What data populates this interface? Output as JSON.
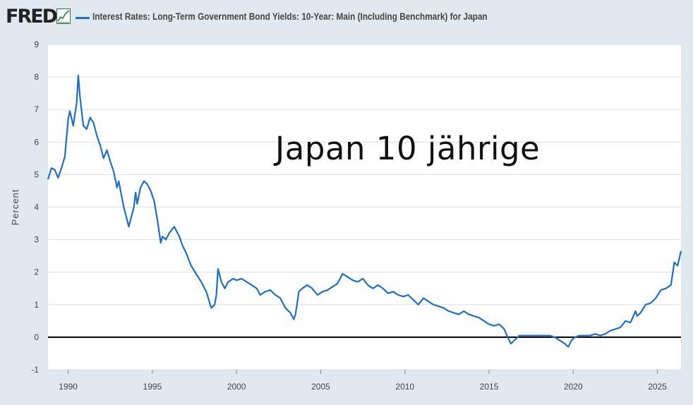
{
  "header": {
    "logo": "FRED",
    "logo_icon": "trend-line-icon",
    "series_title": "Interest Rates: Long-Term Government Bond Yields: 10-Year: Main (Including Benchmark) for Japan"
  },
  "overlay_title": "Japan 10 jährige",
  "colors": {
    "series": "#1f6fc4",
    "zero_line": "#000000",
    "plot_bg": "#ffffff",
    "page_bg": "#e1e9f0",
    "grid": "#d8dde3"
  },
  "chart_data": {
    "type": "line",
    "title": "",
    "xlabel": "",
    "ylabel": "Percent",
    "xlim": [
      1988.8,
      2026.4
    ],
    "ylim": [
      -1,
      9
    ],
    "y_ticks": [
      -1,
      0,
      1,
      2,
      3,
      4,
      5,
      6,
      7,
      8,
      9
    ],
    "x_ticks": [
      1990,
      1995,
      2000,
      2005,
      2010,
      2015,
      2020,
      2025
    ],
    "grid": true,
    "legend": "top-left",
    "reference_line": 0,
    "series": [
      {
        "name": "Interest Rates: Long-Term Government Bond Yields: 10-Year: Main (Including Benchmark) for Japan",
        "x": [
          1988.8,
          1989.0,
          1989.2,
          1989.4,
          1989.6,
          1989.8,
          1990.0,
          1990.1,
          1990.3,
          1990.5,
          1990.6,
          1990.7,
          1990.9,
          1991.1,
          1991.3,
          1991.5,
          1991.7,
          1991.9,
          1992.1,
          1992.3,
          1992.5,
          1992.7,
          1992.9,
          1993.0,
          1993.3,
          1993.6,
          1993.9,
          1994.0,
          1994.1,
          1994.3,
          1994.5,
          1994.7,
          1994.9,
          1995.1,
          1995.3,
          1995.5,
          1995.6,
          1995.8,
          1996.0,
          1996.3,
          1996.6,
          1996.8,
          1997.0,
          1997.3,
          1997.6,
          1997.9,
          1998.2,
          1998.5,
          1998.7,
          1998.8,
          1998.9,
          1999.1,
          1999.3,
          1999.5,
          1999.8,
          2000.0,
          2000.3,
          2000.6,
          2000.9,
          2001.2,
          2001.4,
          2001.7,
          2002.0,
          2002.3,
          2002.6,
          2002.9,
          2003.2,
          2003.4,
          2003.5,
          2003.7,
          2003.9,
          2004.2,
          2004.5,
          2004.8,
          2005.1,
          2005.4,
          2005.7,
          2006.0,
          2006.3,
          2006.6,
          2006.9,
          2007.2,
          2007.5,
          2007.8,
          2008.1,
          2008.4,
          2008.7,
          2009.0,
          2009.3,
          2009.6,
          2009.9,
          2010.2,
          2010.5,
          2010.8,
          2011.1,
          2011.4,
          2011.7,
          2012.0,
          2012.3,
          2012.6,
          2012.9,
          2013.2,
          2013.5,
          2013.8,
          2014.1,
          2014.4,
          2014.7,
          2015.0,
          2015.3,
          2015.6,
          2015.9,
          2016.1,
          2016.3,
          2016.5,
          2016.8,
          2017.1,
          2017.4,
          2017.7,
          2018.0,
          2018.3,
          2018.6,
          2018.9,
          2019.2,
          2019.5,
          2019.7,
          2019.9,
          2020.1,
          2020.4,
          2020.7,
          2021.0,
          2021.3,
          2021.6,
          2021.9,
          2022.2,
          2022.5,
          2022.8,
          2023.1,
          2023.4,
          2023.7,
          2023.8,
          2024.0,
          2024.3,
          2024.6,
          2024.9,
          2025.2,
          2025.5,
          2025.8,
          2026.0,
          2026.2,
          2026.4
        ],
        "values": [
          4.85,
          5.2,
          5.15,
          4.9,
          5.2,
          5.55,
          6.7,
          6.95,
          6.5,
          7.2,
          8.05,
          7.4,
          6.5,
          6.4,
          6.75,
          6.6,
          6.2,
          5.9,
          5.5,
          5.75,
          5.4,
          5.1,
          4.6,
          4.8,
          4.0,
          3.4,
          4.0,
          4.45,
          4.1,
          4.6,
          4.8,
          4.7,
          4.5,
          4.2,
          3.6,
          2.9,
          3.1,
          3.0,
          3.2,
          3.4,
          3.1,
          2.8,
          2.6,
          2.2,
          1.95,
          1.7,
          1.4,
          0.9,
          1.0,
          1.3,
          2.1,
          1.7,
          1.5,
          1.7,
          1.8,
          1.75,
          1.8,
          1.7,
          1.6,
          1.5,
          1.3,
          1.4,
          1.45,
          1.3,
          1.2,
          0.9,
          0.75,
          0.55,
          0.7,
          1.4,
          1.5,
          1.6,
          1.5,
          1.3,
          1.4,
          1.45,
          1.55,
          1.65,
          1.95,
          1.85,
          1.75,
          1.7,
          1.8,
          1.6,
          1.5,
          1.6,
          1.5,
          1.35,
          1.4,
          1.3,
          1.25,
          1.3,
          1.15,
          1.0,
          1.2,
          1.1,
          1.0,
          0.95,
          0.9,
          0.8,
          0.75,
          0.7,
          0.8,
          0.7,
          0.65,
          0.6,
          0.5,
          0.4,
          0.35,
          0.4,
          0.25,
          0.0,
          -0.2,
          -0.1,
          0.05,
          0.05,
          0.05,
          0.05,
          0.05,
          0.05,
          0.05,
          0.0,
          -0.1,
          -0.2,
          -0.3,
          -0.1,
          0.0,
          0.05,
          0.05,
          0.05,
          0.1,
          0.05,
          0.1,
          0.2,
          0.25,
          0.3,
          0.5,
          0.45,
          0.8,
          0.65,
          0.75,
          1.0,
          1.05,
          1.2,
          1.45,
          1.5,
          1.6,
          2.3,
          2.2,
          2.65
        ]
      }
    ]
  }
}
